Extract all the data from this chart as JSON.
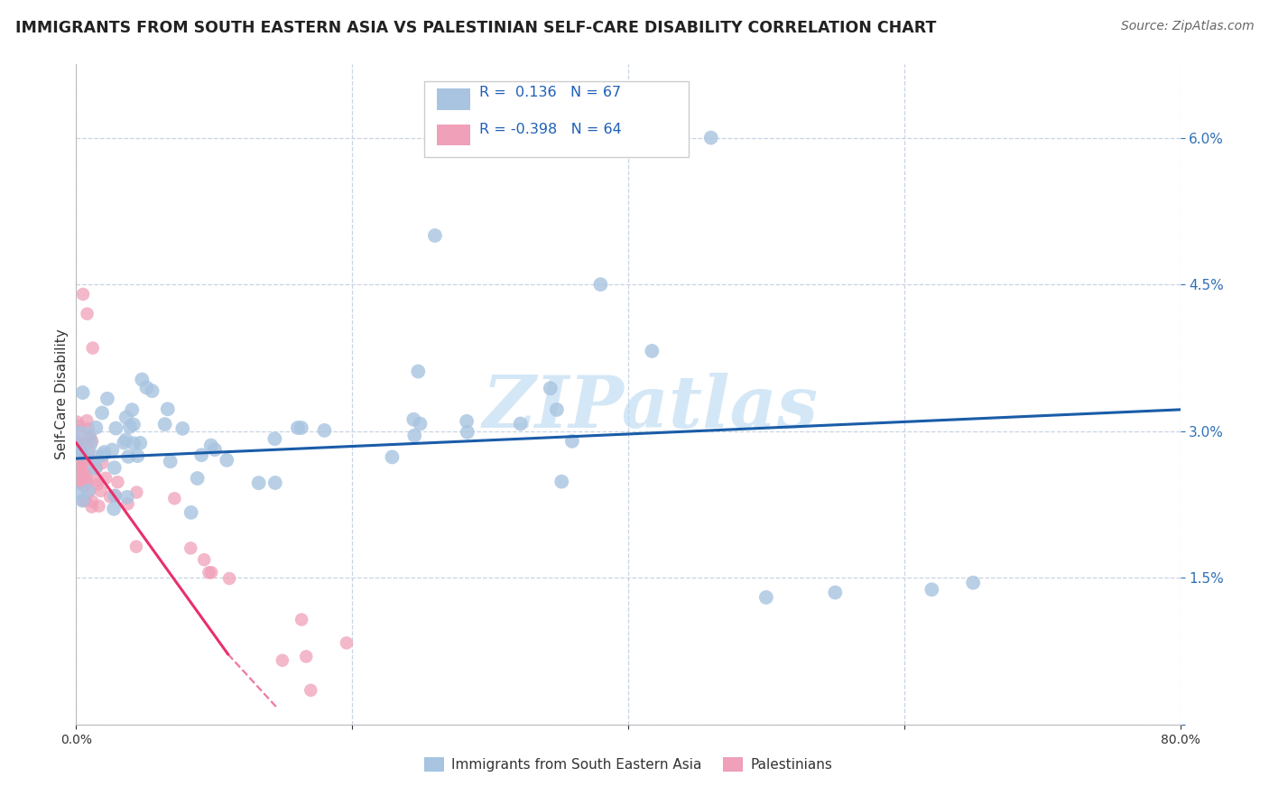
{
  "title": "IMMIGRANTS FROM SOUTH EASTERN ASIA VS PALESTINIAN SELF-CARE DISABILITY CORRELATION CHART",
  "source": "Source: ZipAtlas.com",
  "blue_label": "Immigrants from South Eastern Asia",
  "pink_label": "Palestinians",
  "blue_R": 0.136,
  "blue_N": 67,
  "pink_R": -0.398,
  "pink_N": 64,
  "blue_color": "#a8c4e0",
  "pink_color": "#f0a0b8",
  "blue_line_color": "#1a5ca8",
  "pink_line_color": "#e8306a",
  "watermark": "ZIPatlas",
  "watermark_color": "#b8d8f0",
  "xlim": [
    0.0,
    80.0
  ],
  "ylim": [
    0.0,
    6.75
  ],
  "yticks": [
    0.0,
    1.5,
    3.0,
    4.5,
    6.0
  ],
  "background_color": "#ffffff",
  "grid_color": "#c8d4e4",
  "border_color": "#c0c8d8",
  "blue_line_start_x": 0.0,
  "blue_line_start_y": 2.72,
  "blue_line_end_x": 80.0,
  "blue_line_end_y": 3.22,
  "pink_line_start_x": 0.0,
  "pink_line_start_y": 2.88,
  "pink_solid_end_x": 11.0,
  "pink_solid_end_y": 0.72,
  "pink_dash_end_x": 14.5,
  "pink_dash_end_y": 0.18
}
